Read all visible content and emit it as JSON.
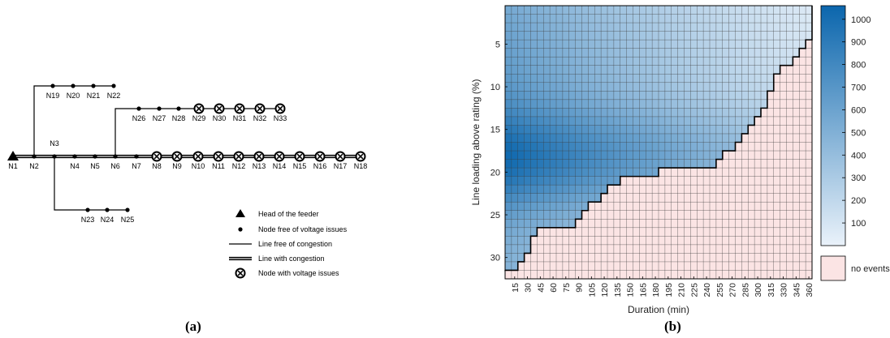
{
  "panel_a": {
    "caption": "(a)",
    "nodes": {
      "N1": "N1",
      "N2": "N2",
      "N3": "N3",
      "N4": "N4",
      "N5": "N5",
      "N6": "N6",
      "N7": "N7",
      "N8": "N8",
      "N9": "N9",
      "N10": "N10",
      "N11": "N11",
      "N12": "N12",
      "N13": "N13",
      "N14": "N14",
      "N15": "N15",
      "N16": "N16",
      "N17": "N17",
      "N18": "N18",
      "N19": "N19",
      "N20": "N20",
      "N21": "N21",
      "N22": "N22",
      "N23": "N23",
      "N24": "N24",
      "N25": "N25",
      "N26": "N26",
      "N27": "N27",
      "N28": "N28",
      "N29": "N29",
      "N30": "N30",
      "N31": "N31",
      "N32": "N32",
      "N33": "N33"
    },
    "legend": [
      {
        "symbol": "triangle",
        "label": "Head of the feeder"
      },
      {
        "symbol": "dot",
        "label": "Node free of voltage issues"
      },
      {
        "symbol": "line",
        "label": "Line free of congestion"
      },
      {
        "symbol": "double-line",
        "label": "Line with congestion"
      },
      {
        "symbol": "x-circle",
        "label": "Node with voltage issues"
      }
    ]
  },
  "panel_b": {
    "caption": "(b)",
    "chart_data": {
      "type": "heatmap",
      "xlabel": "Duration (min)",
      "ylabel": "Line loading above rating (%)",
      "x_values": [
        15,
        30,
        45,
        60,
        75,
        90,
        105,
        120,
        135,
        150,
        165,
        180,
        195,
        210,
        225,
        240,
        255,
        270,
        285,
        300,
        315,
        330,
        345,
        360
      ],
      "y_ticks": [
        5,
        10,
        15,
        20,
        25,
        30
      ],
      "y_range": [
        1,
        32
      ],
      "colorbar": {
        "ticks": [
          100,
          200,
          300,
          400,
          500,
          600,
          700,
          800,
          900,
          1000
        ],
        "range": [
          0,
          1060
        ],
        "color_low": "#eaf2fa",
        "color_high": "#0b66ad",
        "no_events_label": "no events",
        "no_events_color": "#fbe4e4"
      }
    }
  }
}
